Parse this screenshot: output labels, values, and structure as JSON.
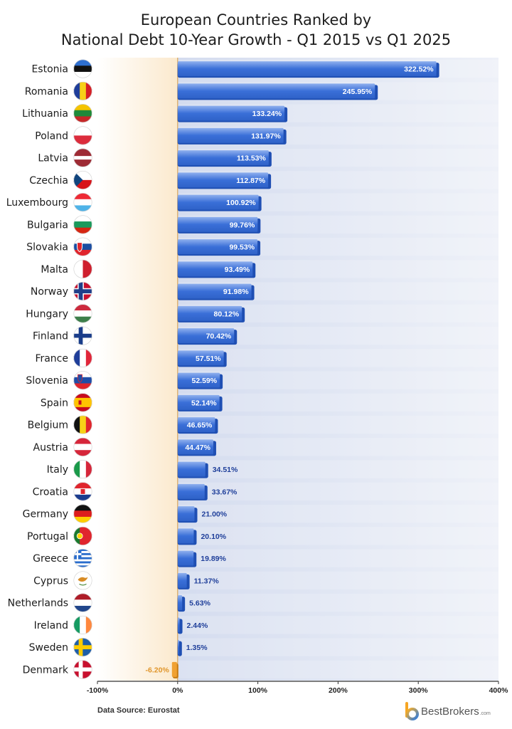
{
  "title_line1": "European Countries Ranked by",
  "title_line2": "National Debt 10-Year Growth - Q1 2015 vs Q1 2025",
  "source": "Data Source: Eurostat",
  "brand": {
    "name": "BestBrokers",
    "suffix": ".com"
  },
  "colors": {
    "positive_bar": "#3a6fd8",
    "positive_bar_dark": "#1f4fb3",
    "negative_bar": "#f0a132",
    "negative_label": "#e0952a",
    "panel": "#e8ecf5",
    "negative_zone": "#fbe9cd"
  },
  "chart_data": {
    "type": "bar",
    "orientation": "horizontal",
    "categories": [
      "Estonia",
      "Romania",
      "Lithuania",
      "Poland",
      "Latvia",
      "Czechia",
      "Luxembourg",
      "Bulgaria",
      "Slovakia",
      "Malta",
      "Norway",
      "Hungary",
      "Finland",
      "France",
      "Slovenia",
      "Spain",
      "Belgium",
      "Austria",
      "Italy",
      "Croatia",
      "Germany",
      "Portugal",
      "Greece",
      "Cyprus",
      "Netherlands",
      "Ireland",
      "Sweden",
      "Denmark"
    ],
    "values": [
      322.52,
      245.95,
      133.24,
      131.97,
      113.53,
      112.87,
      100.92,
      99.76,
      99.53,
      93.49,
      91.98,
      80.12,
      70.42,
      57.51,
      52.59,
      52.14,
      46.65,
      44.47,
      34.51,
      33.67,
      21.0,
      20.1,
      19.89,
      11.37,
      5.63,
      2.44,
      1.35,
      -6.2
    ],
    "value_labels": [
      "322.52%",
      "245.95%",
      "133.24%",
      "131.97%",
      "113.53%",
      "112.87%",
      "100.92%",
      "99.76%",
      "99.53%",
      "93.49%",
      "91.98%",
      "80.12%",
      "70.42%",
      "57.51%",
      "52.59%",
      "52.14%",
      "46.65%",
      "44.47%",
      "34.51%",
      "33.67%",
      "21.00%",
      "20.10%",
      "19.89%",
      "11.37%",
      "5.63%",
      "2.44%",
      "1.35%",
      "-6.20%"
    ],
    "xlim": [
      -100,
      400
    ],
    "xticks": [
      -100,
      0,
      100,
      200,
      300,
      400
    ],
    "xtick_labels": [
      "-100%",
      "0%",
      "100%",
      "200%",
      "300%",
      "400%"
    ],
    "flag_icons": [
      "flag-estonia-icon",
      "flag-romania-icon",
      "flag-lithuania-icon",
      "flag-poland-icon",
      "flag-latvia-icon",
      "flag-czechia-icon",
      "flag-luxembourg-icon",
      "flag-bulgaria-icon",
      "flag-slovakia-icon",
      "flag-malta-icon",
      "flag-norway-icon",
      "flag-hungary-icon",
      "flag-finland-icon",
      "flag-france-icon",
      "flag-slovenia-icon",
      "flag-spain-icon",
      "flag-belgium-icon",
      "flag-austria-icon",
      "flag-italy-icon",
      "flag-croatia-icon",
      "flag-germany-icon",
      "flag-portugal-icon",
      "flag-greece-icon",
      "flag-cyprus-icon",
      "flag-netherlands-icon",
      "flag-ireland-icon",
      "flag-sweden-icon",
      "flag-denmark-icon"
    ],
    "grid": false
  }
}
